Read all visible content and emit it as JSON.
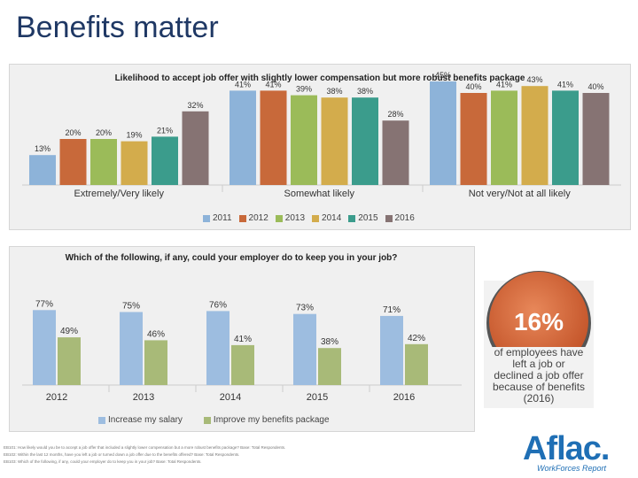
{
  "page": {
    "title": "Benefits matter"
  },
  "chart_data": [
    {
      "type": "bar",
      "title": "Likelihood to accept job offer with slightly lower compensation but more robust benefits package",
      "categories": [
        "Extremely/Very likely",
        "Somewhat likely",
        "Not very/Not at all likely"
      ],
      "ylim": [
        0,
        50
      ],
      "legend_position": "bottom",
      "series": [
        {
          "name": "2011",
          "color": "#8db3d9",
          "values": [
            13,
            41,
            45
          ],
          "labels": [
            "13%",
            "41%",
            "45%"
          ]
        },
        {
          "name": "2012",
          "color": "#c8693a",
          "values": [
            20,
            41,
            40
          ],
          "labels": [
            "20%",
            "41%",
            "40%"
          ]
        },
        {
          "name": "2013",
          "color": "#9bbb59",
          "values": [
            20,
            39,
            41
          ],
          "labels": [
            "20%",
            "39%",
            "41%"
          ]
        },
        {
          "name": "2014",
          "color": "#d3ac4c",
          "values": [
            19,
            38,
            43
          ],
          "labels": [
            "19%",
            "38%",
            "43%"
          ]
        },
        {
          "name": "2015",
          "color": "#3b9c8c",
          "values": [
            21,
            38,
            41
          ],
          "labels": [
            "21%",
            "38%",
            "41%"
          ]
        },
        {
          "name": "2016",
          "color": "#867373",
          "values": [
            32,
            28,
            40
          ],
          "labels": [
            "32%",
            "28%",
            "40%"
          ]
        }
      ]
    },
    {
      "type": "bar",
      "title": "Which of the following, if any, could your employer do to keep you in your job?",
      "categories": [
        "2012",
        "2013",
        "2014",
        "2015",
        "2016"
      ],
      "ylim": [
        0,
        100
      ],
      "legend_position": "bottom",
      "series": [
        {
          "name": "Increase my salary",
          "color": "#9dbde0",
          "values": [
            77,
            75,
            76,
            73,
            71
          ],
          "labels": [
            "77%",
            "75%",
            "76%",
            "73%",
            "71%"
          ]
        },
        {
          "name": "Improve my benefits package",
          "color": "#a8ba78",
          "values": [
            49,
            46,
            41,
            38,
            42
          ],
          "labels": [
            "49%",
            "46%",
            "41%",
            "38%",
            "42%"
          ]
        }
      ]
    }
  ],
  "stat": {
    "value": "16%",
    "caption_lines": [
      "of employees have",
      "left a job or",
      "declined a job offer",
      "because of benefits",
      "(2016)"
    ],
    "circle_color": "#d96a3a"
  },
  "footnotes": [
    "EB101: How likely would you be to accept a job offer that included a slightly lower compensation but a more robust benefits package? Base: Total Respondents.",
    "EB102: Within the last 12 months, have you left a job or turned down a job offer due to the benefits offered? Base: Total Respondents.",
    "EB103: Which of the following, if any, could your employer do to keep you in your job? Base: Total Respondents."
  ],
  "logo": {
    "word": "Aflac.",
    "sub": "WorkForces Report"
  }
}
